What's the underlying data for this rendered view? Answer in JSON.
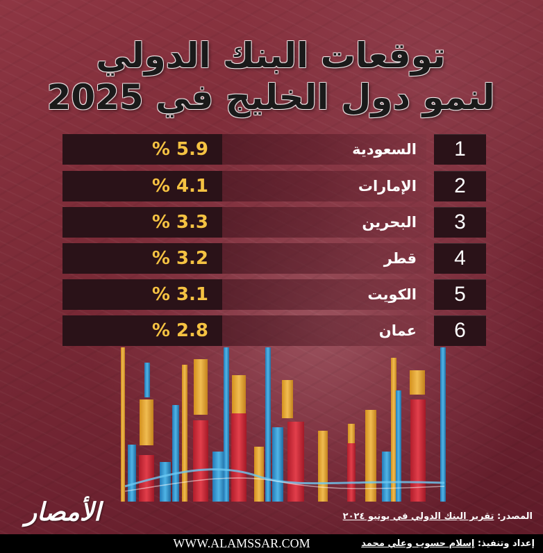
{
  "header": {
    "title_line1": "توقعات البنك الدولي",
    "title_line2": "لنمو دول الخليج في 2025"
  },
  "rankings": [
    {
      "rank": "1",
      "country": "السعودية",
      "value": "% 5.9"
    },
    {
      "rank": "2",
      "country": "الإمارات",
      "value": "% 4.1"
    },
    {
      "rank": "3",
      "country": "البحرين",
      "value": "% 3.3"
    },
    {
      "rank": "4",
      "country": "قطر",
      "value": "% 3.2"
    },
    {
      "rank": "5",
      "country": "الكويت",
      "value": "% 3.1"
    },
    {
      "rank": "6",
      "country": "عمان",
      "value": "% 2.8"
    }
  ],
  "colors": {
    "value_text": "#f5c242",
    "cell_bg": "#2a1218",
    "bar_red": "#d92b3a",
    "bar_yellow": "#f2b632",
    "bar_blue": "#39a9e0"
  },
  "logo": {
    "text": "الأمصار"
  },
  "source": {
    "label": "المصدر:",
    "text": "تقرير البنك الدولي في يونيو ٢٠٢٤"
  },
  "footer": {
    "website": "WWW.ALAMSSAR.COM",
    "credits_label": "إعداد وتنفيذ:",
    "credits_names": "إسلام حسوب  وعلي محمد"
  }
}
